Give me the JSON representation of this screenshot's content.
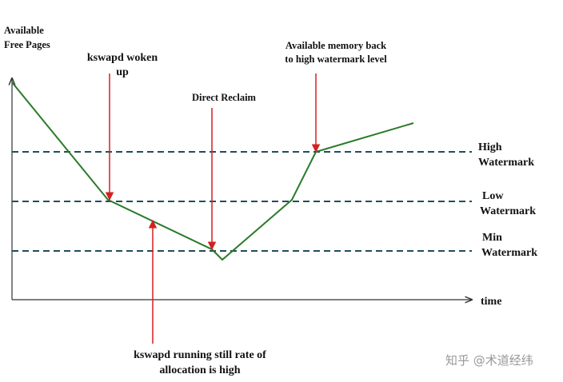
{
  "y_axis_label": [
    "Available",
    "Free Pages"
  ],
  "x_axis_label": "time",
  "watermarks": [
    {
      "label": [
        "High",
        "Watermark"
      ]
    },
    {
      "label": [
        "Low",
        "Watermark"
      ]
    },
    {
      "label": [
        "Min",
        "Watermark"
      ]
    }
  ],
  "annotations": {
    "kswapd_woken": [
      "kswapd woken",
      "up"
    ],
    "direct_reclaim": [
      "Direct Reclaim"
    ],
    "memory_back": [
      "Available memory back",
      "to high watermark level"
    ],
    "kswapd_running": [
      "kswapd running still rate of",
      "allocation is high"
    ]
  },
  "watermark_credit": "知乎 @术道经纬"
}
